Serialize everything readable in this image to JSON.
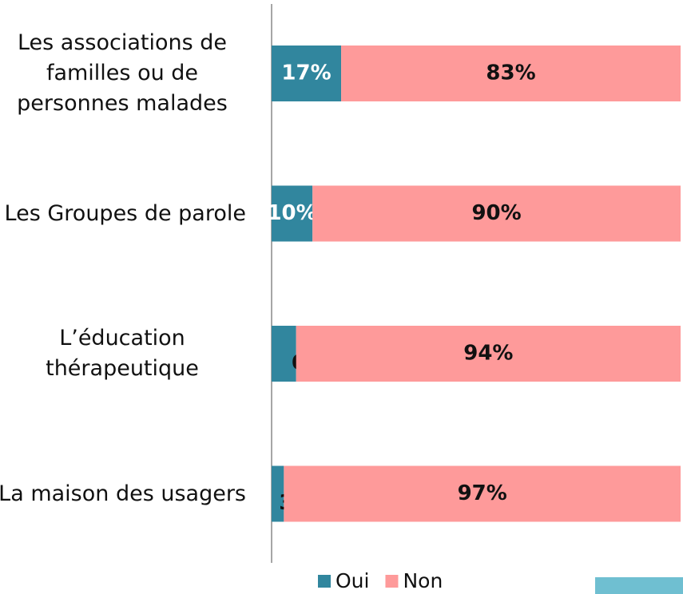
{
  "chart_data": {
    "type": "stacked-bar-horizontal",
    "categories": [
      "Les associations de familles ou de personnes malades",
      "Les Groupes de parole",
      "L’éducation thérapeutique",
      "La maison des usagers"
    ],
    "series": [
      {
        "name": "Oui",
        "color": "#31869e",
        "values": [
          17,
          10,
          6,
          3
        ],
        "value_labels": [
          "17%",
          "10%",
          "6%",
          "3%"
        ]
      },
      {
        "name": "Non",
        "color": "#fe9a9a",
        "values": [
          83,
          90,
          94,
          97
        ],
        "value_labels": [
          "83%",
          "90%",
          "94%",
          "97%"
        ]
      }
    ],
    "xlim": [
      0,
      100
    ]
  }
}
